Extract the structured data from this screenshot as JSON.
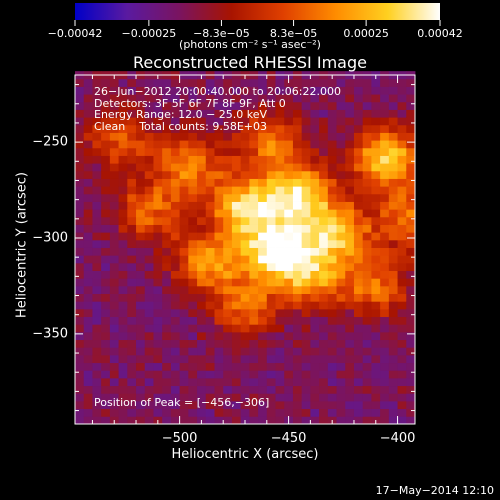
{
  "chart_data": {
    "type": "heatmap",
    "title": "Reconstructed RHESSI Image",
    "xlabel": "Heliocentric X (arcsec)",
    "ylabel": "Heliocentric Y (arcsec)",
    "xlim": [
      -548,
      -392
    ],
    "ylim": [
      -397,
      -215
    ],
    "x_ticks": [
      -500,
      -450,
      -400
    ],
    "y_ticks": [
      -250,
      -300,
      -350
    ],
    "x_tick_labels": [
      "−500",
      "−450",
      "−400"
    ],
    "y_tick_labels": [
      "−250",
      "−300",
      "−350"
    ],
    "colorbar": {
      "ticks": [
        -0.00042,
        -0.00025,
        -8.3e-05,
        8.3e-05,
        0.00025,
        0.00042
      ],
      "tick_labels": [
        "−0.00042",
        "−0.00025",
        "−8.3e−05",
        "8.3e−05",
        "0.00025",
        "0.00042"
      ],
      "unit_label": "(photons cm⁻² s⁻¹ asec⁻²)",
      "colormap": [
        "#0000c8",
        "#5a1aa0",
        "#7a1460",
        "#a81400",
        "#e04000",
        "#ff8c00",
        "#ffd020",
        "#ffffff"
      ]
    },
    "annotations": [
      "26−Jun−2012 20:00:40.000 to 20:06:22.000",
      "Detectors: 3F 5F 6F 7F 8F 9F, Att 0",
      "Energy Range: 12.0 − 25.0 keV",
      "Clean    Total counts: 9.58E+03"
    ],
    "peak_label": "Position of Peak = [−456,−306]",
    "peak": {
      "x": -456,
      "y": -306,
      "value": 0.00042
    },
    "sources": [
      {
        "x": -456,
        "y": -306,
        "value": 0.00042
      },
      {
        "x": -445,
        "y": -278,
        "value": 0.00034
      },
      {
        "x": -470,
        "y": -283,
        "value": 0.0003
      },
      {
        "x": -428,
        "y": -298,
        "value": 0.00026
      },
      {
        "x": -405,
        "y": -258,
        "value": 0.0003
      },
      {
        "x": -487,
        "y": -312,
        "value": 0.0002
      },
      {
        "x": -440,
        "y": -320,
        "value": 0.00018
      },
      {
        "x": -496,
        "y": -262,
        "value": 0.00016
      },
      {
        "x": -458,
        "y": -250,
        "value": 0.00014
      },
      {
        "x": -410,
        "y": -325,
        "value": 0.00013
      },
      {
        "x": -514,
        "y": -286,
        "value": 0.00012
      },
      {
        "x": -395,
        "y": -290,
        "value": 0.00014
      },
      {
        "x": -470,
        "y": -335,
        "value": 0.00011
      },
      {
        "x": -527,
        "y": -250,
        "value": 9e-05
      }
    ]
  },
  "footer": {
    "timestamp": "17−May−2014 12:10"
  }
}
